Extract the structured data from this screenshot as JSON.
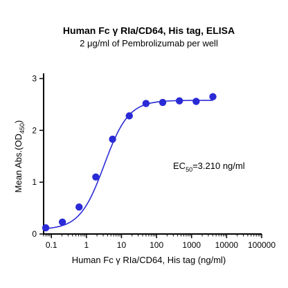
{
  "chart_data": {
    "type": "scatter",
    "title": "Human Fc γ RIa/CD64, His tag, ELISA",
    "subtitle": "2 μg/ml of Pembrolizumab per well",
    "xlabel": "Human Fc γ RIa/CD64, His tag (ng/ml)",
    "ylabel": {
      "main": "Mean Abs.(OD",
      "sub": "450",
      "close": ")"
    },
    "x_scale": "log",
    "xlim": [
      0.06,
      100000
    ],
    "ylim": [
      0,
      3.1
    ],
    "x_ticks": [
      0.1,
      1,
      10,
      100,
      1000,
      10000,
      100000
    ],
    "x_tick_labels": [
      "0.1",
      "1",
      "10",
      "100",
      "1000",
      "10000",
      "100000"
    ],
    "y_ticks": [
      0,
      1,
      2,
      3
    ],
    "y_tick_labels": [
      "0",
      "1",
      "2",
      "3"
    ],
    "grid": false,
    "color": "#2a2ad6",
    "points": {
      "x": [
        0.069,
        0.206,
        0.617,
        1.85,
        5.56,
        16.7,
        50,
        150,
        450,
        1350,
        4050
      ],
      "y": [
        0.12,
        0.23,
        0.52,
        1.1,
        1.83,
        2.28,
        2.52,
        2.54,
        2.57,
        2.56,
        2.65
      ]
    },
    "fit": {
      "bottom": 0.085,
      "top": 2.58,
      "ec50": 3.21,
      "hill": 1.25
    },
    "annotation": {
      "prefix": "EC",
      "sub": "50",
      "suffix": "=3.210 ng/ml"
    }
  }
}
